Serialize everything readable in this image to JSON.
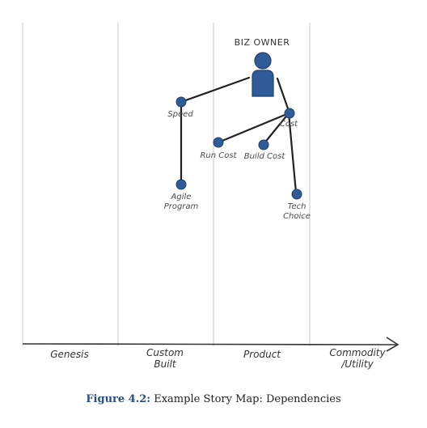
{
  "owner": {
    "label": "BIZ OWNER"
  },
  "nodes": {
    "speed": {
      "label": "Speed"
    },
    "cost": {
      "label": "Cost"
    },
    "run_cost": {
      "label": "Run Cost"
    },
    "build_cost": {
      "label": "Build Cost"
    },
    "agile_program": {
      "line1": "Agile",
      "line2": "Program"
    },
    "tech_choice": {
      "line1": "Tech",
      "line2": "Choice"
    }
  },
  "stages": {
    "genesis": {
      "line1": "Genesis"
    },
    "custom_built": {
      "line1": "Custom",
      "line2": "Built"
    },
    "product": {
      "line1": "Product"
    },
    "commodity": {
      "line1": "Commodity",
      "line2": "/Utility"
    }
  },
  "caption": {
    "figure": "Figure 4.2:",
    "text": "Example Story Map: Dependencies"
  },
  "colors": {
    "node_fill": "#2f5c99",
    "node_stroke": "#1f3f6e",
    "line": "#222222",
    "grid": "#c8c8c8",
    "caption_accent": "#2a4f86"
  }
}
